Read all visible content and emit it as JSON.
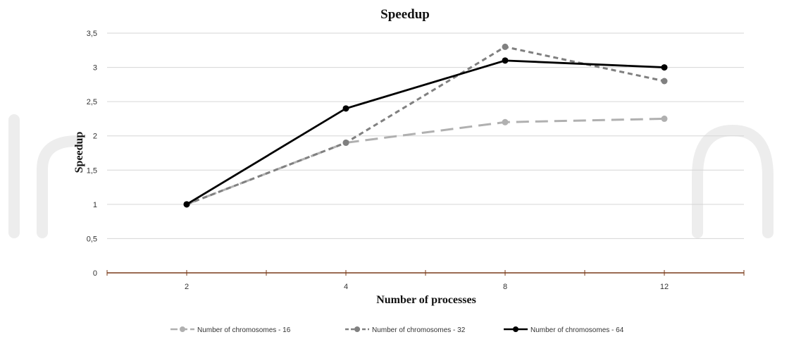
{
  "chart_data": {
    "type": "line",
    "title": "Speedup",
    "xlabel": "Number of processes",
    "ylabel": "Speedup",
    "categories": [
      "2",
      "4",
      "8",
      "12"
    ],
    "y_tick_labels": [
      "0",
      "0,5",
      "1",
      "1,5",
      "2",
      "2,5",
      "3",
      "3,5"
    ],
    "ylim": [
      0,
      3.5
    ],
    "grid": true,
    "legend_position": "bottom",
    "series": [
      {
        "name": "Number of chromosomes - 16",
        "values": [
          1.0,
          1.9,
          2.2,
          2.25
        ],
        "color": "#b0b0b0",
        "style": "long-dash"
      },
      {
        "name": "Number of chromosomes - 32",
        "values": [
          1.0,
          1.9,
          3.3,
          2.8
        ],
        "color": "#808080",
        "style": "dash"
      },
      {
        "name": "Number of chromosomes - 64",
        "values": [
          1.0,
          2.4,
          3.1,
          3.0
        ],
        "color": "#000000",
        "style": "solid"
      }
    ]
  }
}
